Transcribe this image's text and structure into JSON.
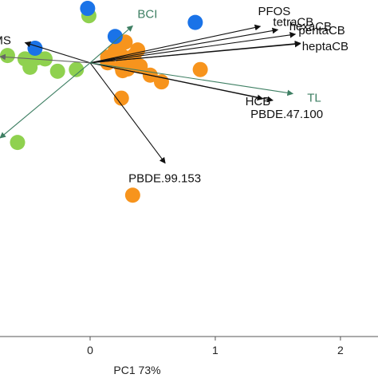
{
  "chart_data": {
    "type": "scatter",
    "xlabel": "PC1 73%",
    "ylabel": "",
    "title": "",
    "xlim": [
      -0.72,
      2.3
    ],
    "ylim": [
      -2.0,
      1.0
    ],
    "x_ticks": [
      0,
      1,
      2
    ],
    "x_tick_labels": [
      "0",
      "1",
      "2"
    ],
    "series": [
      {
        "color": "#1a73e8",
        "points": [
          {
            "x": -0.02,
            "y": 0.925
          },
          {
            "x": 0.84,
            "y": 0.8
          },
          {
            "x": 0.2,
            "y": 0.675
          },
          {
            "x": -0.44,
            "y": 0.57
          }
        ]
      },
      {
        "color": "#8fd14f",
        "points": [
          {
            "x": -0.01,
            "y": 0.86
          },
          {
            "x": -0.66,
            "y": 0.505
          },
          {
            "x": -0.42,
            "y": 0.485
          },
          {
            "x": -0.36,
            "y": 0.475
          },
          {
            "x": -0.52,
            "y": 0.475
          },
          {
            "x": -0.48,
            "y": 0.4
          },
          {
            "x": -0.26,
            "y": 0.365
          },
          {
            "x": -0.11,
            "y": 0.38
          },
          {
            "x": -0.58,
            "y": -0.27
          }
        ]
      },
      {
        "color": "#f7941d",
        "points": [
          {
            "x": 0.28,
            "y": 0.625
          },
          {
            "x": 0.23,
            "y": 0.57
          },
          {
            "x": 0.2,
            "y": 0.545
          },
          {
            "x": 0.38,
            "y": 0.555
          },
          {
            "x": 0.35,
            "y": 0.505
          },
          {
            "x": 0.27,
            "y": 0.49
          },
          {
            "x": 0.14,
            "y": 0.49
          },
          {
            "x": 0.14,
            "y": 0.44
          },
          {
            "x": 0.25,
            "y": 0.41
          },
          {
            "x": 0.31,
            "y": 0.425
          },
          {
            "x": 0.4,
            "y": 0.41
          },
          {
            "x": 0.3,
            "y": 0.385
          },
          {
            "x": 0.26,
            "y": 0.37
          },
          {
            "x": 0.88,
            "y": 0.38
          },
          {
            "x": 0.48,
            "y": 0.33
          },
          {
            "x": 0.57,
            "y": 0.27
          },
          {
            "x": 0.25,
            "y": 0.125
          },
          {
            "x": 0.34,
            "y": -0.74
          }
        ]
      }
    ],
    "loadings_origin": {
      "x": 0.0,
      "y": 0.44
    },
    "loadings": [
      {
        "label": "PFOS",
        "x": 1.36,
        "y": 0.765,
        "style": "dark"
      },
      {
        "label": "tetraCB",
        "x": 1.5,
        "y": 0.735,
        "style": "dark"
      },
      {
        "label": "pentaCB",
        "x": 1.64,
        "y": 0.695,
        "style": "dark"
      },
      {
        "label": "hexaCB",
        "x": 1.68,
        "y": 0.615,
        "style": "dark"
      },
      {
        "label": "heptaCB",
        "x": 1.68,
        "y": 0.61,
        "style": "dark"
      },
      {
        "label": "HCB",
        "x": 1.38,
        "y": 0.12,
        "style": "dark"
      },
      {
        "label": "PBDE.47.100",
        "x": 1.46,
        "y": 0.105,
        "style": "dark"
      },
      {
        "label": "PBDE.99.153",
        "x": 0.6,
        "y": -0.455,
        "style": "dark"
      },
      {
        "label": "MS",
        "x": -0.52,
        "y": 0.62,
        "style": "dark"
      },
      {
        "label": "BCI",
        "x": 0.34,
        "y": 0.77,
        "style": "teal"
      },
      {
        "label": "TL",
        "x": 1.62,
        "y": 0.165,
        "style": "teal"
      },
      {
        "label": "",
        "x": -0.72,
        "y": -0.23,
        "style": "teal"
      },
      {
        "label": "",
        "x": -0.72,
        "y": 0.495,
        "style": "gray"
      }
    ]
  }
}
